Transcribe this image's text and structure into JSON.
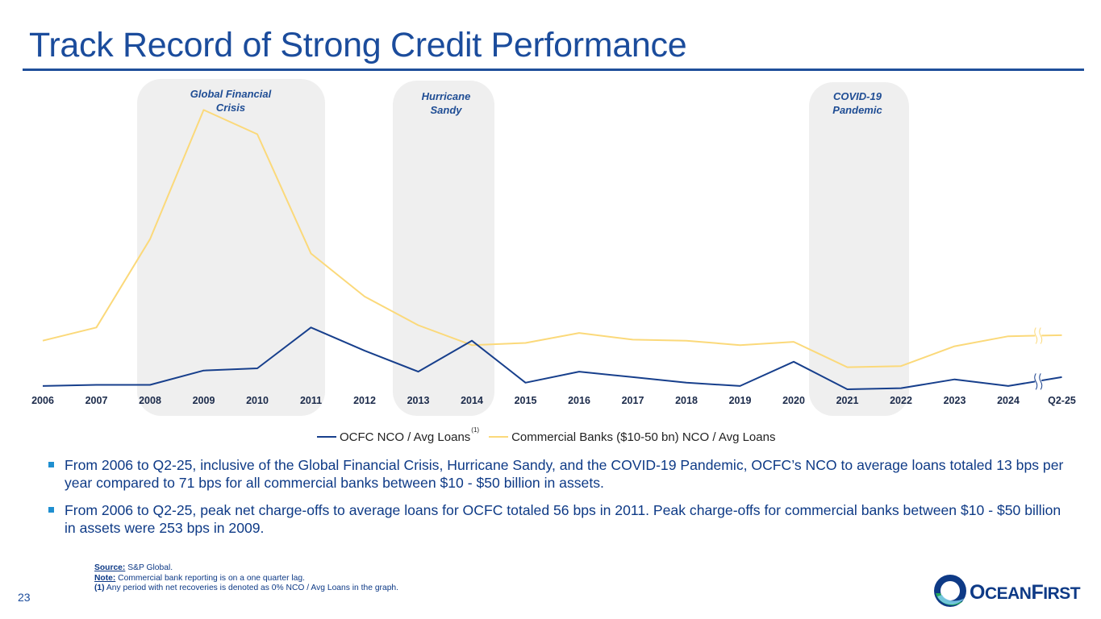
{
  "title": "Track Record of Strong Credit Performance",
  "events": [
    {
      "label_line1": "Global Financial",
      "label_line2": "Crisis"
    },
    {
      "label_line1": "Hurricane",
      "label_line2": "Sandy"
    },
    {
      "label_line1": "COVID-19",
      "label_line2": "Pandemic"
    }
  ],
  "colors": {
    "ocfc": "#173f8c",
    "commercial": "#fbd97a",
    "shade": "#efefef",
    "title": "#1b4c9c",
    "bullet_marker": "#1f8fd0"
  },
  "chart_data": {
    "type": "line",
    "categories": [
      "2006",
      "2007",
      "2008",
      "2009",
      "2010",
      "2011",
      "2012",
      "2013",
      "2014",
      "2015",
      "2016",
      "2017",
      "2018",
      "2019",
      "2020",
      "2021",
      "2022",
      "2023",
      "2024",
      "Q2-25"
    ],
    "series": [
      {
        "name": "OCFC NCO / Avg Loans",
        "values": [
          3,
          4,
          4,
          17,
          19,
          56,
          35,
          16,
          44,
          6,
          16,
          11,
          6,
          3,
          25,
          0,
          1,
          9,
          3,
          11
        ]
      },
      {
        "name": "Commercial Banks ($10-50 bn) NCO / Avg Loans",
        "values": [
          44,
          56,
          136,
          253,
          231,
          123,
          84,
          58,
          40,
          42,
          51,
          45,
          44,
          40,
          43,
          20,
          21,
          39,
          48,
          49
        ]
      }
    ],
    "axis_break_between": [
      "2024",
      "Q2-25"
    ],
    "grid": false,
    "legend_position": "bottom"
  },
  "legend": {
    "ocfc_label": "OCFC NCO / Avg Loans",
    "ocfc_sup": "(1)",
    "commercial_label": "Commercial Banks ($10-50 bn) NCO / Avg Loans"
  },
  "bullets": [
    "From 2006 to Q2-25, inclusive of the Global Financial Crisis, Hurricane Sandy, and the COVID-19 Pandemic, OCFC’s NCO to average loans totaled 13 bps per year compared to 71 bps for all commercial banks between $10 - $50 billion in assets.",
    "From 2006 to Q2-25, peak net charge-offs to average loans for OCFC totaled 56 bps in 2011. Peak charge-offs for commercial banks between $10 - $50 billion in assets were 253 bps in 2009."
  ],
  "notes": {
    "source_label": "Source:",
    "source_text": " S&P Global.",
    "note_label": "Note:",
    "note_text": " Commercial bank reporting is on a one quarter lag.",
    "footnote_label": "(1)",
    "footnote_text": "  Any period with net recoveries is denoted as 0% NCO / Avg Loans in the graph."
  },
  "page_number": "23",
  "logo": {
    "initial1": "O",
    "word1": "CEAN",
    "initial2": "F",
    "word2": "IRST"
  }
}
